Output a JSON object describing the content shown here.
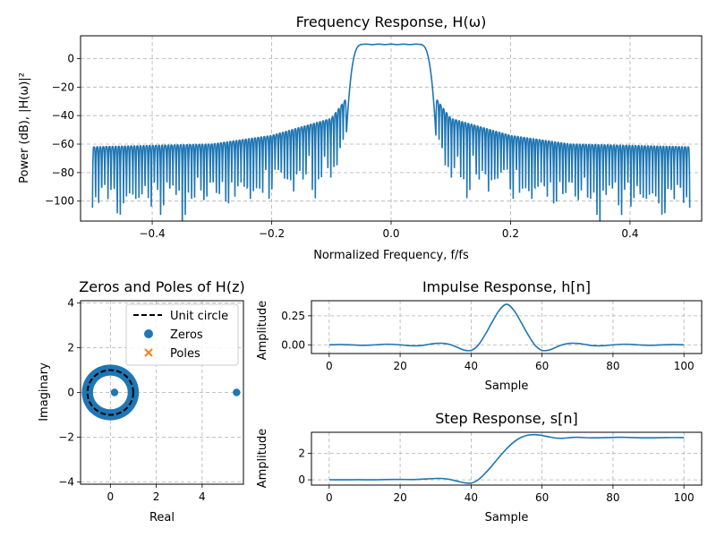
{
  "chart_data": [
    {
      "id": "freq",
      "type": "line",
      "title": "Frequency Response, H(ω)",
      "xlabel": "Normalized Frequency, f/fs",
      "ylabel": "Power (dB), |H(ω)|²",
      "xlim": [
        -0.52,
        0.52
      ],
      "ylim": [
        -114,
        16
      ],
      "xticks": [
        -0.4,
        -0.2,
        0.0,
        0.2,
        0.4
      ],
      "xtick_labels": [
        "−0.4",
        "−0.2",
        "0.0",
        "0.2",
        "0.4"
      ],
      "yticks": [
        0,
        -20,
        -40,
        -60,
        -80,
        -100
      ],
      "ytick_labels": [
        "0",
        "−20",
        "−40",
        "−60",
        "−80",
        "−100"
      ],
      "grid": true,
      "color": "#1f77b4",
      "passband_edge": 0.075,
      "passband_level_db": 10,
      "stopband_ripple_count": 82,
      "stopband_envelope_db": [
        [
          0.075,
          -28
        ],
        [
          0.1,
          -42
        ],
        [
          0.2,
          -54
        ],
        [
          0.3,
          -60
        ],
        [
          0.5,
          -62
        ]
      ]
    },
    {
      "id": "pz",
      "type": "scatter",
      "title": "Zeros and Poles of H(z)",
      "xlabel": "Real",
      "ylabel": "Imaginary",
      "xlim": [
        -1.3,
        5.8
      ],
      "ylim": [
        -4.1,
        4.1
      ],
      "xticks": [
        0,
        2,
        4
      ],
      "xtick_labels": [
        "0",
        "2",
        "4"
      ],
      "yticks": [
        4,
        2,
        0,
        -2,
        -4
      ],
      "ytick_labels": [
        "4",
        "2",
        "0",
        "−2",
        "−4"
      ],
      "grid": true,
      "legend_position": "top-right",
      "legend": [
        {
          "label": "Unit circle",
          "marker": "dashed-line",
          "color": "#000000"
        },
        {
          "label": "Zeros",
          "marker": "circle",
          "color": "#1f77b4"
        },
        {
          "label": "Poles",
          "marker": "x",
          "color": "#ff7f0e"
        }
      ],
      "unit_circle_radius": 1,
      "zeros_on_circle_count": 90,
      "zero_radii": [
        0.92,
        1.08
      ],
      "extra_zeros": [
        [
          0.18,
          0
        ],
        [
          5.5,
          0
        ]
      ],
      "poles": []
    },
    {
      "id": "impulse",
      "type": "line",
      "title": "Impulse Response, h[n]",
      "xlabel": "Sample",
      "ylabel": "Amplitude",
      "xlim": [
        -5,
        105
      ],
      "ylim": [
        -0.075,
        0.38
      ],
      "xticks": [
        0,
        20,
        40,
        60,
        80,
        100
      ],
      "xtick_labels": [
        "0",
        "20",
        "40",
        "60",
        "80",
        "100"
      ],
      "yticks": [
        0.25,
        0.0
      ],
      "ytick_labels": [
        "0.25",
        "0.00"
      ],
      "grid": true,
      "color": "#1f77b4",
      "x": [
        0,
        2,
        4,
        6,
        8,
        10,
        12,
        14,
        16,
        18,
        20,
        22,
        24,
        26,
        28,
        30,
        32,
        34,
        36,
        38,
        40,
        42,
        44,
        46,
        48,
        50,
        52,
        54,
        56,
        58,
        60,
        62,
        64,
        66,
        68,
        70,
        72,
        74,
        76,
        78,
        80,
        82,
        84,
        86,
        88,
        90,
        92,
        94,
        96,
        98,
        100
      ],
      "values": [
        0.0,
        0.002,
        0.002,
        0.0,
        -0.003,
        -0.004,
        -0.002,
        0.002,
        0.005,
        0.004,
        0.0,
        -0.006,
        -0.009,
        -0.006,
        0.004,
        0.012,
        0.013,
        0.003,
        -0.02,
        -0.045,
        -0.048,
        -0.003,
        0.09,
        0.2,
        0.3,
        0.35,
        0.3,
        0.2,
        0.09,
        -0.003,
        -0.048,
        -0.045,
        -0.02,
        0.003,
        0.013,
        0.012,
        0.004,
        -0.006,
        -0.009,
        -0.006,
        0.0,
        0.004,
        0.005,
        0.002,
        -0.002,
        -0.004,
        -0.003,
        0.0,
        0.002,
        0.002,
        0.0
      ]
    },
    {
      "id": "step",
      "type": "line",
      "title": "Step Response, s[n]",
      "xlabel": "Sample",
      "ylabel": "Amplitude",
      "xlim": [
        -5,
        105
      ],
      "ylim": [
        -0.4,
        3.6
      ],
      "xticks": [
        0,
        20,
        40,
        60,
        80,
        100
      ],
      "xtick_labels": [
        "0",
        "20",
        "40",
        "60",
        "80",
        "100"
      ],
      "yticks": [
        2,
        0
      ],
      "ytick_labels": [
        "2",
        "0"
      ],
      "grid": true,
      "color": "#1f77b4",
      "x": [
        0,
        4,
        8,
        12,
        16,
        20,
        24,
        28,
        30,
        32,
        34,
        36,
        38,
        40,
        42,
        44,
        46,
        48,
        50,
        52,
        54,
        56,
        58,
        60,
        62,
        64,
        66,
        68,
        70,
        74,
        78,
        82,
        86,
        90,
        95,
        100
      ],
      "values": [
        0.0,
        0.0,
        0.01,
        0.0,
        0.02,
        0.03,
        0.02,
        0.08,
        0.1,
        0.1,
        0.03,
        -0.1,
        -0.22,
        -0.25,
        0.0,
        0.5,
        1.1,
        1.75,
        2.35,
        2.85,
        3.2,
        3.38,
        3.42,
        3.36,
        3.25,
        3.16,
        3.15,
        3.2,
        3.22,
        3.18,
        3.2,
        3.22,
        3.2,
        3.18,
        3.2,
        3.2
      ]
    }
  ]
}
